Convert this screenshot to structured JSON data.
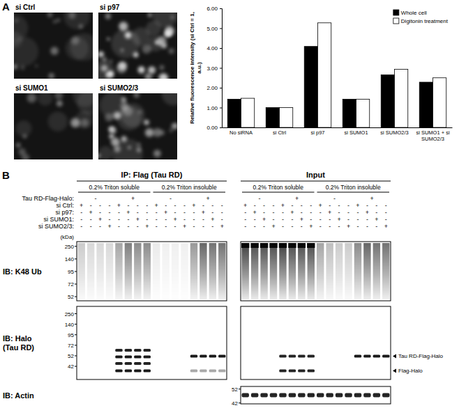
{
  "panel_labels": [
    "A",
    "B"
  ],
  "images": {
    "labels": [
      "si Ctrl",
      "si p97",
      "si SUMO1",
      "si SUMO2/3"
    ]
  },
  "chart_data": {
    "type": "bar",
    "categories": [
      "No siRNA",
      "si Ctrl",
      "si p97",
      "si SUMO1",
      "si SUMO2/3",
      "si SUMO1 + si SUMO2/3"
    ],
    "series": [
      {
        "name": "Whole cell",
        "color": "#000000",
        "values": [
          1.42,
          1.0,
          4.08,
          1.42,
          2.65,
          2.28
        ]
      },
      {
        "name": "Digitonin treatment",
        "color": "#ffffff",
        "values": [
          1.47,
          1.0,
          5.27,
          1.42,
          2.93,
          2.5
        ]
      }
    ],
    "y_label": "Relative fluorescence intensity (si Ctrl = 1, a.u.)",
    "ylim": [
      0,
      6
    ],
    "yticks": [
      {
        "value": 0,
        "label": "0.00"
      },
      {
        "value": 1,
        "label": "1.00"
      },
      {
        "value": 2,
        "label": "2.00"
      },
      {
        "value": 3,
        "label": "3.00"
      },
      {
        "value": 4,
        "label": "4.00"
      },
      {
        "value": 5,
        "label": "5.00"
      },
      {
        "value": 6,
        "label": "6.00"
      }
    ],
    "legend": "top-right",
    "grid": false
  },
  "blots": {
    "groups": [
      "IP: Flag (Tau RD)",
      "Input"
    ],
    "fractions": [
      "0.2% Triton soluble",
      "0.2% Triton insoluble"
    ],
    "tau_row": {
      "label": "Tau RD-Flag-Halo:",
      "marks": [
        "-",
        "+",
        "-",
        "+"
      ]
    },
    "sirna_rows": [
      {
        "label": "si Ctrl:",
        "marks": [
          "+",
          "-",
          "-",
          "-",
          "+",
          "-",
          "-",
          "-",
          "+",
          "-",
          "-",
          "-",
          "+",
          "-",
          "-",
          "-"
        ]
      },
      {
        "label": "si p97:",
        "marks": [
          "-",
          "+",
          "-",
          "-",
          "-",
          "+",
          "-",
          "-",
          "-",
          "+",
          "-",
          "-",
          "-",
          "+",
          "-",
          "-"
        ]
      },
      {
        "label": "si SUMO1:",
        "marks": [
          "-",
          "-",
          "+",
          "-",
          "-",
          "-",
          "+",
          "-",
          "-",
          "-",
          "+",
          "-",
          "-",
          "-",
          "+",
          "-"
        ]
      },
      {
        "label": "si SUMO2/3:",
        "marks": [
          "-",
          "-",
          "-",
          "+",
          "-",
          "-",
          "-",
          "+",
          "-",
          "-",
          "-",
          "+",
          "-",
          "-",
          "-",
          "+"
        ]
      }
    ],
    "kda_label": "(kDa)",
    "immunoblots": [
      {
        "label": "IB: K48 Ub",
        "markers": [
          250,
          140,
          95,
          72,
          52
        ]
      },
      {
        "label": "IB: Halo (Tau RD)",
        "markers": [
          250,
          140,
          95,
          72,
          52,
          42
        ]
      },
      {
        "label": "IB: Actin",
        "markers": [
          52,
          42
        ]
      }
    ],
    "band_labels": [
      "Tau RD-Flag-Halo",
      "Flag-Halo"
    ]
  }
}
